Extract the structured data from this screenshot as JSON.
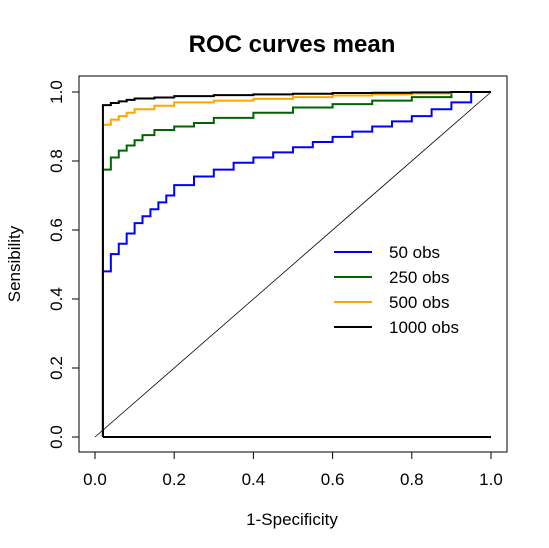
{
  "chart_data": {
    "type": "line",
    "title": "ROC curves mean",
    "xlabel": "1-Specificity",
    "ylabel": "Sensibility",
    "xlim": [
      0,
      1
    ],
    "ylim": [
      0,
      1
    ],
    "xticks": [
      "0.0",
      "0.2",
      "0.4",
      "0.6",
      "0.8",
      "1.0"
    ],
    "yticks": [
      "0.0",
      "0.2",
      "0.4",
      "0.6",
      "0.8",
      "1.0"
    ],
    "grid": false,
    "legend_position": "right",
    "reference_line": {
      "x": [
        0,
        1
      ],
      "y": [
        0,
        1
      ],
      "color": "#000000"
    },
    "series": [
      {
        "name": "50 obs",
        "color": "#0000ff",
        "x": [
          0.02,
          0.02,
          0.04,
          0.06,
          0.08,
          0.1,
          0.12,
          0.14,
          0.16,
          0.18,
          0.2,
          0.25,
          0.3,
          0.35,
          0.4,
          0.45,
          0.5,
          0.55,
          0.6,
          0.65,
          0.7,
          0.75,
          0.8,
          0.85,
          0.9,
          0.95,
          1.0
        ],
        "y": [
          0.0,
          0.42,
          0.48,
          0.53,
          0.56,
          0.59,
          0.62,
          0.64,
          0.66,
          0.68,
          0.7,
          0.73,
          0.755,
          0.775,
          0.795,
          0.81,
          0.825,
          0.84,
          0.855,
          0.87,
          0.885,
          0.9,
          0.915,
          0.93,
          0.95,
          0.97,
          1.0
        ]
      },
      {
        "name": "250 obs",
        "color": "#006400",
        "x": [
          0.02,
          0.02,
          0.04,
          0.06,
          0.08,
          0.1,
          0.12,
          0.15,
          0.2,
          0.25,
          0.3,
          0.4,
          0.5,
          0.6,
          0.7,
          0.8,
          0.9,
          1.0
        ],
        "y": [
          0.0,
          0.73,
          0.775,
          0.81,
          0.83,
          0.845,
          0.86,
          0.875,
          0.89,
          0.9,
          0.91,
          0.925,
          0.94,
          0.955,
          0.965,
          0.975,
          0.985,
          1.0
        ]
      },
      {
        "name": "500 obs",
        "color": "#ffa500",
        "x": [
          0.02,
          0.02,
          0.04,
          0.06,
          0.08,
          0.1,
          0.15,
          0.2,
          0.3,
          0.4,
          0.5,
          0.6,
          0.7,
          0.8,
          0.9,
          1.0
        ],
        "y": [
          0.0,
          0.885,
          0.905,
          0.92,
          0.93,
          0.94,
          0.95,
          0.96,
          0.97,
          0.975,
          0.98,
          0.985,
          0.99,
          0.993,
          0.996,
          1.0
        ]
      },
      {
        "name": "1000 obs",
        "color": "#000000",
        "x": [
          0.02,
          0.02,
          0.04,
          0.06,
          0.08,
          0.1,
          0.15,
          0.2,
          0.3,
          0.4,
          0.5,
          0.6,
          0.7,
          0.8,
          0.9,
          1.0
        ],
        "y": [
          0.0,
          0.955,
          0.962,
          0.968,
          0.973,
          0.977,
          0.981,
          0.984,
          0.988,
          0.991,
          0.993,
          0.995,
          0.997,
          0.998,
          0.999,
          1.0
        ]
      }
    ],
    "baseline_segment": {
      "x": [
        0.02,
        1.0
      ],
      "y": [
        0.0,
        0.0
      ],
      "color": "#000000"
    }
  }
}
